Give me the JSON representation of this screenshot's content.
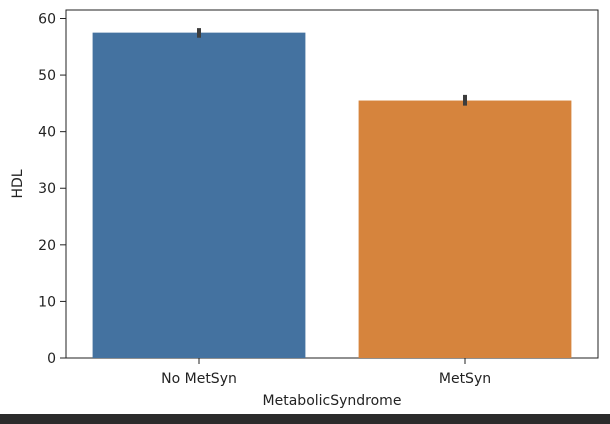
{
  "chart_data": {
    "type": "bar",
    "title": "",
    "xlabel": "MetabolicSyndrome",
    "ylabel": "HDL",
    "categories": [
      "No MetSyn",
      "MetSyn"
    ],
    "values": [
      57.5,
      45.5
    ],
    "error_bars": [
      [
        56.6,
        58.3
      ],
      [
        44.6,
        46.5
      ]
    ],
    "colors": [
      "#4472a0",
      "#d6843d"
    ],
    "ylim": [
      0,
      61.5
    ],
    "yticks": [
      0,
      10,
      20,
      30,
      40,
      50,
      60
    ],
    "grid": false,
    "legend": "none"
  },
  "footer_bar_color": "#2b2b2b"
}
